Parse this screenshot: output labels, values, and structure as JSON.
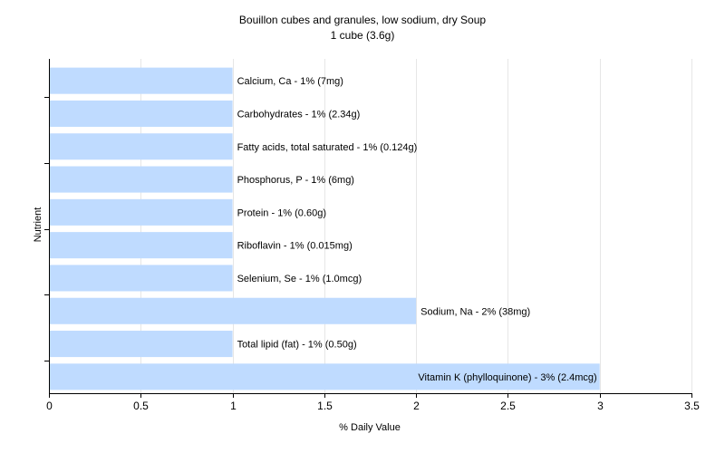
{
  "chart_data": {
    "type": "bar",
    "orientation": "horizontal",
    "title": "Bouillon cubes and granules, low sodium, dry Soup",
    "subtitle": "1 cube (3.6g)",
    "xlabel": "% Daily Value",
    "ylabel": "Nutrient",
    "xlim": [
      0,
      3.5
    ],
    "xticks": [
      "0",
      "0.5",
      "1",
      "1.5",
      "2",
      "2.5",
      "3",
      "3.5"
    ],
    "grid": true,
    "bar_color": "#bfdbff",
    "grid_color": "#e6e6e6",
    "categories": [
      "Calcium, Ca",
      "Carbohydrates",
      "Fatty acids, total saturated",
      "Phosphorus, P",
      "Protein",
      "Riboflavin",
      "Selenium, Se",
      "Sodium, Na",
      "Total lipid (fat)",
      "Vitamin K (phylloquinone)"
    ],
    "values": [
      1,
      1,
      1,
      1,
      1,
      1,
      1,
      2,
      1,
      3
    ],
    "labels": [
      "Calcium, Ca - 1% (7mg)",
      "Carbohydrates - 1% (2.34g)",
      "Fatty acids, total saturated - 1% (0.124g)",
      "Phosphorus, P - 1% (6mg)",
      "Protein - 1% (0.60g)",
      "Riboflavin - 1% (0.015mg)",
      "Selenium, Se - 1% (1.0mcg)",
      "Sodium, Na - 2% (38mg)",
      "Total lipid (fat) - 1% (0.50g)",
      "Vitamin K (phylloquinone) - 3% (2.4mcg)"
    ]
  }
}
